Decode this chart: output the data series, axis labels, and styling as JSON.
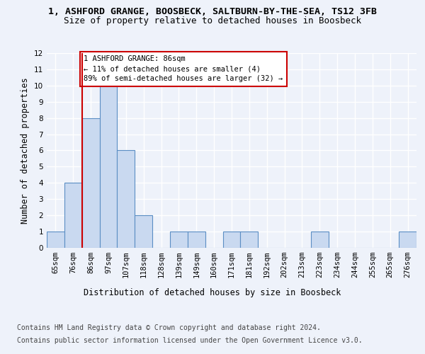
{
  "title_line1": "1, ASHFORD GRANGE, BOOSBECK, SALTBURN-BY-THE-SEA, TS12 3FB",
  "title_line2": "Size of property relative to detached houses in Boosbeck",
  "xlabel": "Distribution of detached houses by size in Boosbeck",
  "ylabel": "Number of detached properties",
  "categories": [
    "65sqm",
    "76sqm",
    "86sqm",
    "97sqm",
    "107sqm",
    "118sqm",
    "128sqm",
    "139sqm",
    "149sqm",
    "160sqm",
    "171sqm",
    "181sqm",
    "192sqm",
    "202sqm",
    "213sqm",
    "223sqm",
    "234sqm",
    "244sqm",
    "255sqm",
    "265sqm",
    "276sqm"
  ],
  "values": [
    1,
    4,
    8,
    10,
    6,
    2,
    0,
    1,
    1,
    0,
    1,
    1,
    0,
    0,
    0,
    1,
    0,
    0,
    0,
    0,
    1
  ],
  "bar_color": "#c9d9f0",
  "bar_edgecolor": "#5b8ec4",
  "highlight_index": 2,
  "highlight_line_color": "#cc0000",
  "annotation_text": "1 ASHFORD GRANGE: 86sqm\n← 11% of detached houses are smaller (4)\n89% of semi-detached houses are larger (32) →",
  "annotation_box_edgecolor": "#cc0000",
  "ylim": [
    0,
    12
  ],
  "yticks": [
    0,
    1,
    2,
    3,
    4,
    5,
    6,
    7,
    8,
    9,
    10,
    11,
    12
  ],
  "footer_line1": "Contains HM Land Registry data © Crown copyright and database right 2024.",
  "footer_line2": "Contains public sector information licensed under the Open Government Licence v3.0.",
  "bg_color": "#eef2fa",
  "grid_color": "#ffffff",
  "title_fontsize": 9.5,
  "subtitle_fontsize": 9,
  "axis_fontsize": 8.5,
  "tick_fontsize": 7.5,
  "footer_fontsize": 7
}
